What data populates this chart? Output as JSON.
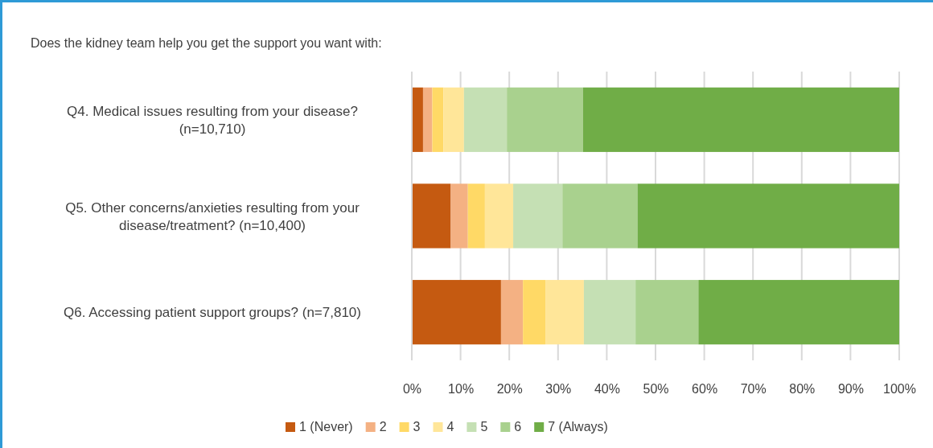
{
  "chart_data": {
    "type": "bar",
    "orientation": "horizontal",
    "stacked": true,
    "title": "Does the kidney team help you get the support you want with:",
    "categories": [
      "Q4. Medical issues resulting from your disease? (n=10,710)",
      "Q5. Other concerns/anxieties resulting from your disease/treatment? (n=10,400)",
      "Q6. Accessing patient support groups? (n=7,810)"
    ],
    "series": [
      {
        "name": "1 (Never)",
        "color": "#c55a11",
        "values": [
          2.3,
          8.0,
          18.3
        ]
      },
      {
        "name": "2",
        "color": "#f4b183",
        "values": [
          1.9,
          3.5,
          4.5
        ]
      },
      {
        "name": "3",
        "color": "#ffd966",
        "values": [
          2.3,
          3.5,
          4.6
        ]
      },
      {
        "name": "4",
        "color": "#ffe699",
        "values": [
          4.2,
          5.8,
          7.9
        ]
      },
      {
        "name": "5",
        "color": "#c5e0b4",
        "values": [
          8.8,
          10.1,
          10.6
        ]
      },
      {
        "name": "6",
        "color": "#a9d18e",
        "values": [
          15.6,
          15.4,
          12.9
        ]
      },
      {
        "name": "7 (Always)",
        "color": "#70ad47",
        "values": [
          64.9,
          53.7,
          41.2
        ]
      }
    ],
    "xlim": [
      0,
      100
    ],
    "xticks": [
      {
        "value": 0,
        "label": "0%"
      },
      {
        "value": 10,
        "label": "10%"
      },
      {
        "value": 20,
        "label": "20%"
      },
      {
        "value": 30,
        "label": "30%"
      },
      {
        "value": 40,
        "label": "40%"
      },
      {
        "value": 50,
        "label": "50%"
      },
      {
        "value": 60,
        "label": "60%"
      },
      {
        "value": 70,
        "label": "70%"
      },
      {
        "value": 80,
        "label": "80%"
      },
      {
        "value": 90,
        "label": "90%"
      },
      {
        "value": 100,
        "label": "100%"
      }
    ],
    "grid": "x",
    "legend": "bottom"
  }
}
